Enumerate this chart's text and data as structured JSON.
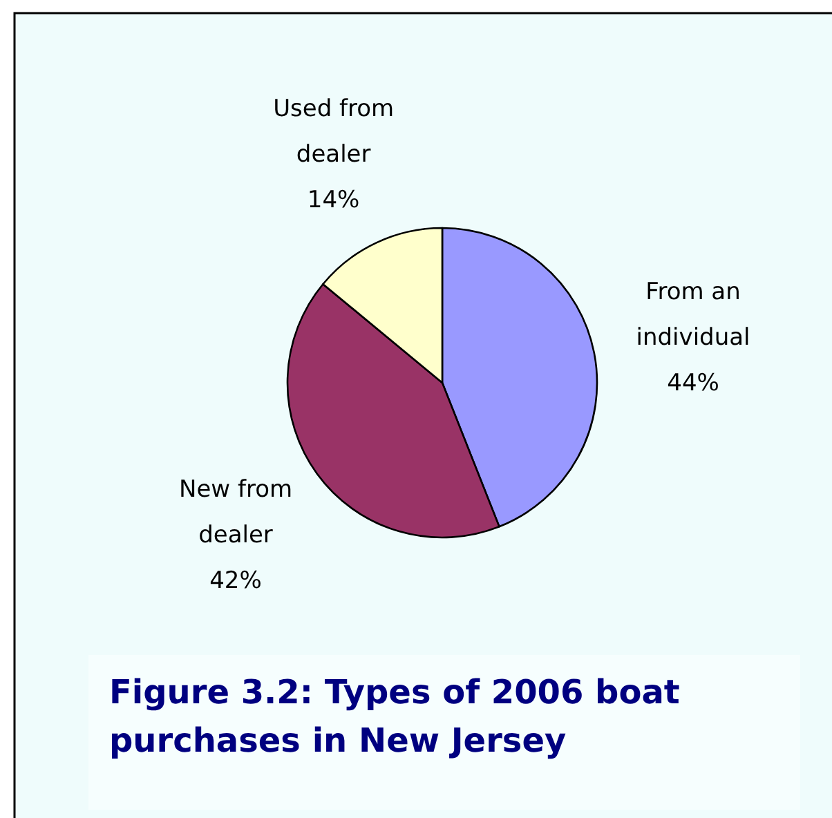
{
  "chart_data": {
    "type": "pie",
    "title": "Figure 3.2:  Types of 2006 boat purchases in New Jersey",
    "categories": [
      "From an individual",
      "New from dealer",
      "Used from dealer"
    ],
    "values": [
      44,
      42,
      14
    ],
    "value_labels": [
      "44%",
      "42%",
      "14%"
    ],
    "colors": [
      "#9999ff",
      "#993366",
      "#ffffcc"
    ]
  }
}
